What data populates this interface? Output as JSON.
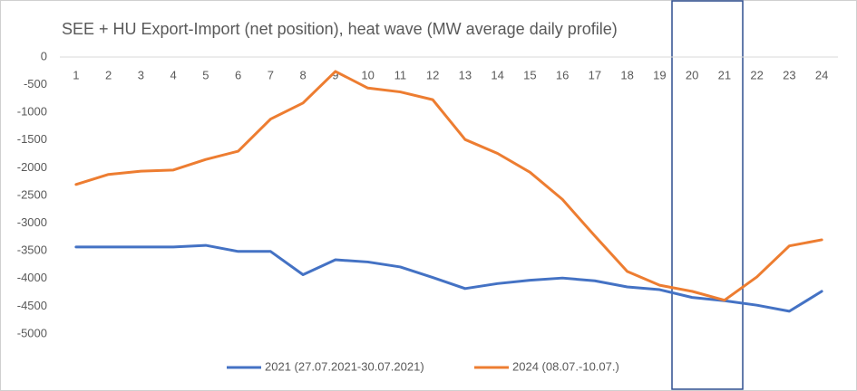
{
  "chart_data": {
    "type": "line",
    "title": "SEE + HU Export-Import (net position), heat wave (MW average daily profile)",
    "categories": [
      "1",
      "2",
      "3",
      "4",
      "5",
      "6",
      "7",
      "8",
      "9",
      "10",
      "11",
      "12",
      "13",
      "14",
      "15",
      "16",
      "17",
      "18",
      "19",
      "20",
      "21",
      "22",
      "23",
      "24"
    ],
    "series": [
      {
        "name": "2021 (27.07.2021-30.07.2021)",
        "color": "#4472c4",
        "values": [
          -3430,
          -3430,
          -3430,
          -3430,
          -3400,
          -3510,
          -3510,
          -3930,
          -3660,
          -3700,
          -3790,
          -3980,
          -4180,
          -4090,
          -4030,
          -3990,
          -4040,
          -4150,
          -4200,
          -4340,
          -4400,
          -4480,
          -4590,
          -4230
        ]
      },
      {
        "name": "2024 (08.07.-10.07.)",
        "color": "#ed7d31",
        "values": [
          -2300,
          -2120,
          -2060,
          -2040,
          -1850,
          -1700,
          -1120,
          -830,
          -260,
          -560,
          -630,
          -770,
          -1490,
          -1740,
          -2080,
          -2570,
          -3230,
          -3870,
          -4120,
          -4230,
          -4390,
          -3970,
          -3410,
          -3300
        ]
      }
    ],
    "ylim": [
      -5000,
      0
    ],
    "yticks": [
      0,
      -500,
      -1000,
      -1500,
      -2000,
      -2500,
      -3000,
      -3500,
      -4000,
      -4500,
      -5000
    ],
    "legend": "bottom"
  }
}
